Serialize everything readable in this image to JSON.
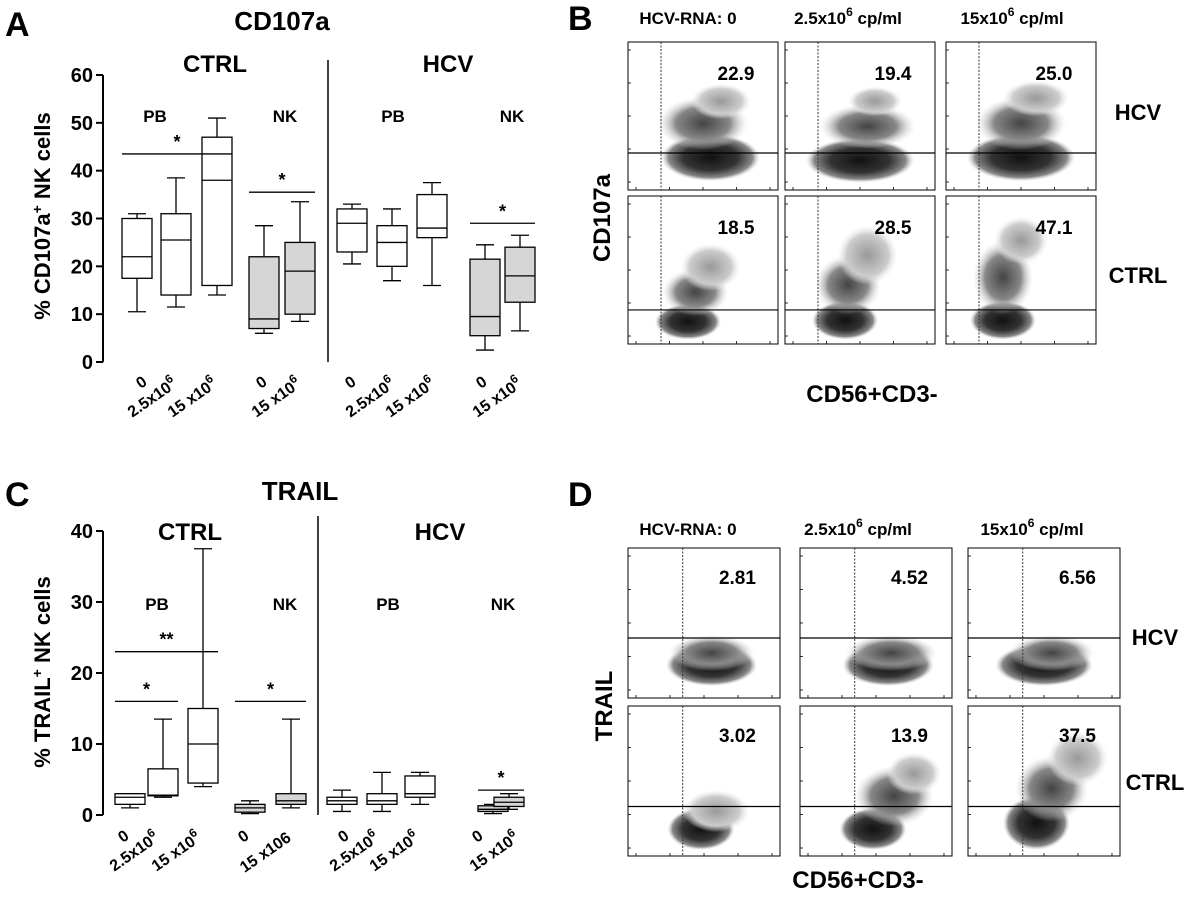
{
  "panels": {
    "A": {
      "letter": "A",
      "title": "CD107a",
      "ylabel_pre": "% CD107a",
      "ylabel_sup": "+",
      "ylabel_post": " NK cells",
      "yticks": [
        "0",
        "10",
        "20",
        "30",
        "40",
        "50",
        "60"
      ],
      "group_labels": [
        "CTRL",
        "HCV"
      ],
      "sub_labels": [
        "PB",
        "NK",
        "PB",
        "NK"
      ],
      "xlabels": [
        [
          "0",
          "2.5x10",
          "6"
        ],
        [
          "2.5x10",
          "6",
          ""
        ],
        [
          "15 x10",
          "6",
          ""
        ],
        [
          "0",
          "",
          ""
        ],
        [
          "15 x10",
          "6",
          ""
        ],
        [
          "0",
          "",
          ""
        ],
        [
          "2.5x10",
          "6",
          ""
        ],
        [
          "15 x10",
          "6",
          ""
        ],
        [
          "0",
          "",
          ""
        ],
        [
          "15 x10",
          "6",
          ""
        ]
      ],
      "stars": [
        "*",
        "*",
        "*"
      ]
    },
    "C": {
      "letter": "C",
      "title": "TRAIL",
      "ylabel_pre": "% TRAIL",
      "ylabel_sup": "+",
      "ylabel_post": " NK cells",
      "yticks": [
        "0",
        "10",
        "20",
        "30",
        "40"
      ],
      "group_labels": [
        "CTRL",
        "HCV"
      ],
      "sub_labels": [
        "PB",
        "NK",
        "PB",
        "NK"
      ],
      "stars": [
        "**",
        "*",
        "*",
        "*"
      ]
    },
    "B": {
      "letter": "B",
      "col_headers": [
        "HCV-RNA: 0",
        "2.5x10",
        "cp/ml",
        "15x10",
        "cp/ml"
      ],
      "sup": "6",
      "row_labels": [
        "HCV",
        "CTRL"
      ],
      "values": [
        "22.9",
        "19.4",
        "25.0",
        "18.5",
        "28.5",
        "47.1"
      ],
      "ylabel": "CD107a",
      "xlabel": "CD56+CD3-"
    },
    "D": {
      "letter": "D",
      "col_headers": [
        "HCV-RNA: 0",
        "2.5x10",
        "cp/ml",
        "15x10",
        "cp/ml"
      ],
      "sup": "6",
      "row_labels": [
        "HCV",
        "CTRL"
      ],
      "values": [
        "2.81",
        "4.52",
        "6.56",
        "3.02",
        "13.9",
        "37.5"
      ],
      "ylabel": "TRAIL",
      "xlabel": "CD56+CD3-"
    }
  },
  "chart_data": [
    {
      "type": "box",
      "panel": "A",
      "title": "CD107a",
      "ylabel": "% CD107a+ NK cells",
      "ylim": [
        0,
        60
      ],
      "categories": [
        "CTRL PB 0",
        "CTRL PB 2.5x10^6",
        "CTRL PB 15x10^6",
        "CTRL NK 0",
        "CTRL NK 15x10^6",
        "HCV PB 0",
        "HCV PB 2.5x10^6",
        "HCV PB 15x10^6",
        "HCV NK 0",
        "HCV NK 15x10^6"
      ],
      "series": [
        {
          "boxes": [
            {
              "min": 10.5,
              "q1": 17.5,
              "median": 22,
              "q3": 30,
              "max": 31,
              "fill": "white"
            },
            {
              "min": 11.5,
              "q1": 14,
              "median": 25.5,
              "q3": 31,
              "max": 38.5,
              "fill": "white"
            },
            {
              "min": 14,
              "q1": 16,
              "median": 38,
              "q3": 47,
              "max": 51,
              "fill": "white"
            },
            {
              "min": 6,
              "q1": 7,
              "median": 9,
              "q3": 22,
              "max": 28.5,
              "fill": "gray"
            },
            {
              "min": 8.5,
              "q1": 10,
              "median": 19,
              "q3": 25,
              "max": 33.5,
              "fill": "gray"
            },
            {
              "min": 20.5,
              "q1": 23,
              "median": 29,
              "q3": 32,
              "max": 33,
              "fill": "white"
            },
            {
              "min": 17,
              "q1": 20,
              "median": 25,
              "q3": 28.5,
              "max": 32,
              "fill": "white"
            },
            {
              "min": 16,
              "q1": 26,
              "median": 28,
              "q3": 35,
              "max": 37.5,
              "fill": "white"
            },
            {
              "min": 2.5,
              "q1": 5.5,
              "median": 9.5,
              "q3": 21.5,
              "max": 24.5,
              "fill": "gray"
            },
            {
              "min": 6.5,
              "q1": 12.5,
              "median": 18,
              "q3": 24,
              "max": 26.5,
              "fill": "gray"
            }
          ]
        }
      ],
      "significance": [
        {
          "from": 0,
          "to": 2,
          "y": 43.5,
          "label": "*"
        },
        {
          "from": 3,
          "to": 4,
          "y": 35.5,
          "label": "*"
        },
        {
          "from": 8,
          "to": 9,
          "y": 29,
          "label": "*"
        }
      ]
    },
    {
      "type": "box",
      "panel": "C",
      "title": "TRAIL",
      "ylabel": "% TRAIL+ NK cells",
      "ylim": [
        0,
        40
      ],
      "categories": [
        "CTRL PB 0",
        "CTRL PB 2.5x10^6",
        "CTRL PB 15x10^6",
        "CTRL NK 0",
        "CTRL NK 15x10^6",
        "HCV PB 0",
        "HCV PB 2.5x10^6",
        "HCV PB 15x10^6",
        "HCV NK 0",
        "HCV NK 15x10^6"
      ],
      "series": [
        {
          "boxes": [
            {
              "min": 1,
              "q1": 1.5,
              "median": 2.5,
              "q3": 3,
              "max": 3,
              "fill": "white"
            },
            {
              "min": 2.5,
              "q1": 2.7,
              "median": 2.8,
              "q3": 6.5,
              "max": 13.5,
              "fill": "white"
            },
            {
              "min": 4,
              "q1": 4.5,
              "median": 10,
              "q3": 15,
              "max": 37.5,
              "fill": "white"
            },
            {
              "min": 0.2,
              "q1": 0.4,
              "median": 1,
              "q3": 1.5,
              "max": 2,
              "fill": "gray"
            },
            {
              "min": 1,
              "q1": 1.5,
              "median": 2,
              "q3": 3,
              "max": 13.5,
              "fill": "gray"
            },
            {
              "min": 0.5,
              "q1": 1.5,
              "median": 2,
              "q3": 2.5,
              "max": 3.5,
              "fill": "white"
            },
            {
              "min": 0.5,
              "q1": 1.5,
              "median": 2,
              "q3": 3,
              "max": 6,
              "fill": "white"
            },
            {
              "min": 1.5,
              "q1": 2.5,
              "median": 3,
              "q3": 5.5,
              "max": 6,
              "fill": "white"
            },
            {
              "min": 0.2,
              "q1": 0.5,
              "median": 0.8,
              "q3": 1.3,
              "max": 1.5,
              "fill": "gray"
            },
            {
              "min": 0.8,
              "q1": 1.2,
              "median": 1.8,
              "q3": 2.5,
              "max": 3,
              "fill": "gray"
            }
          ]
        }
      ],
      "significance": [
        {
          "from": 0,
          "to": 2,
          "y": 23,
          "label": "**"
        },
        {
          "from": 0,
          "to": 1,
          "y": 16,
          "label": "*"
        },
        {
          "from": 3,
          "to": 4,
          "y": 16,
          "label": "*"
        },
        {
          "from": 8,
          "to": 9,
          "y": 3.5,
          "label": "*"
        }
      ]
    },
    {
      "type": "flow-cytometry",
      "panel": "B",
      "xlabel": "CD56+CD3-",
      "ylabel": "CD107a",
      "columns": [
        "HCV-RNA: 0",
        "2.5x10^6 cp/ml",
        "15x10^6 cp/ml"
      ],
      "rows": [
        "HCV",
        "CTRL"
      ],
      "values": [
        [
          22.9,
          19.4,
          25.0
        ],
        [
          18.5,
          28.5,
          47.1
        ]
      ]
    },
    {
      "type": "flow-cytometry",
      "panel": "D",
      "xlabel": "CD56+CD3-",
      "ylabel": "TRAIL",
      "columns": [
        "HCV-RNA: 0",
        "2.5x10^6 cp/ml",
        "15x10^6 cp/ml"
      ],
      "rows": [
        "HCV",
        "CTRL"
      ],
      "values": [
        [
          2.81,
          4.52,
          6.56
        ],
        [
          3.02,
          13.9,
          37.5
        ]
      ]
    }
  ]
}
